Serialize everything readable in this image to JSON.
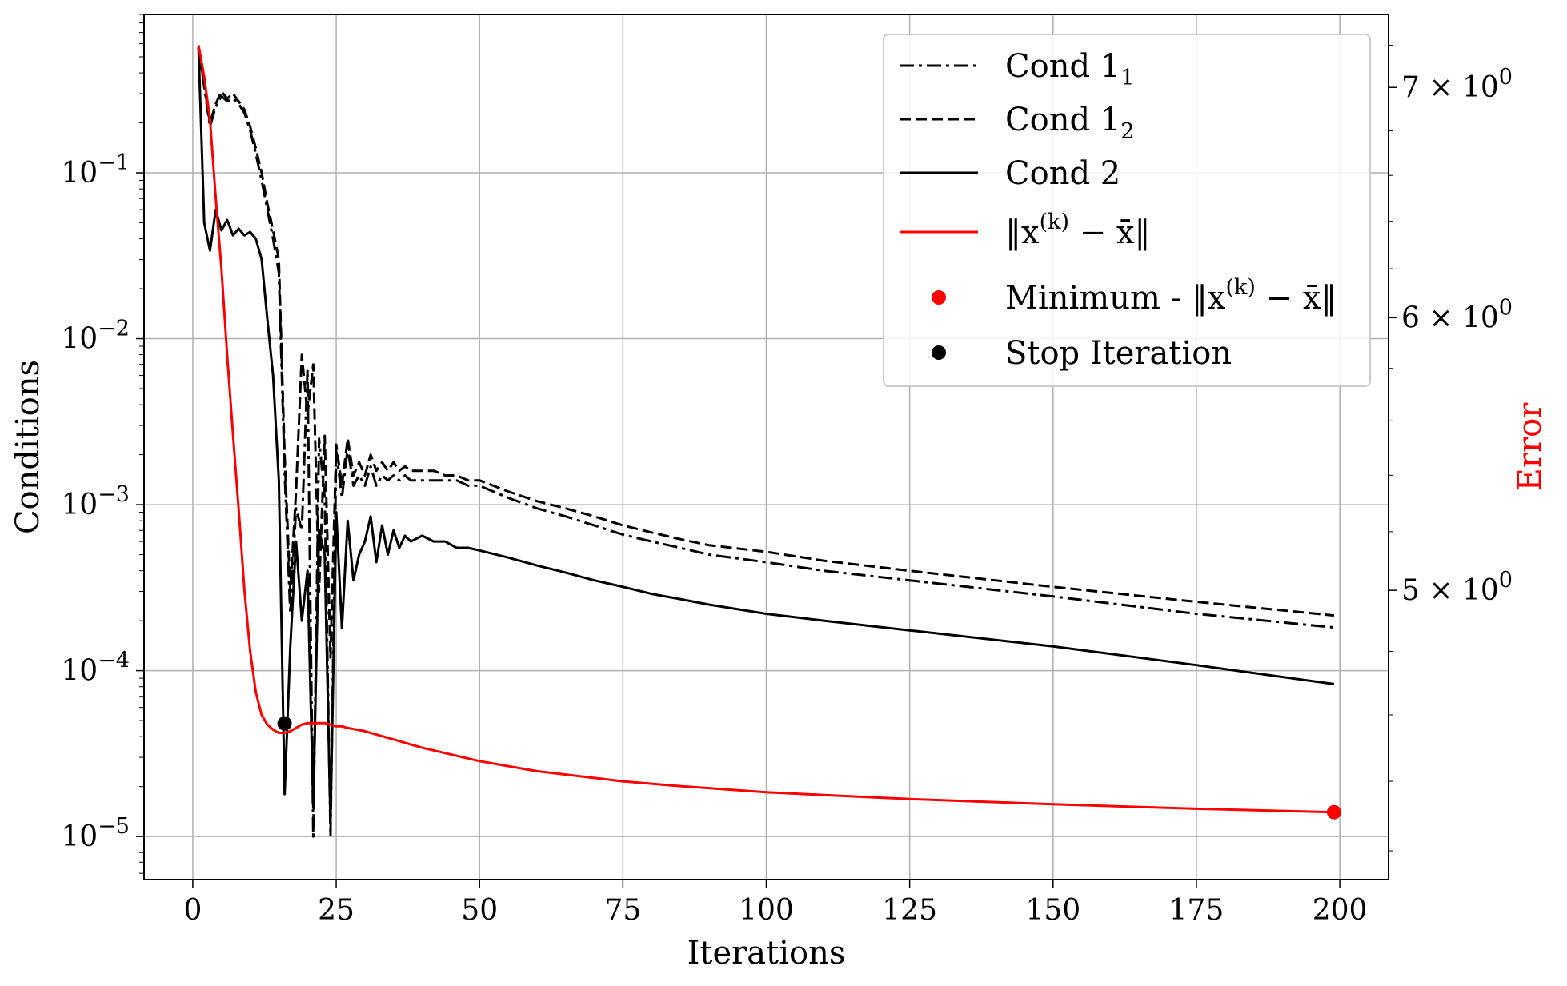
{
  "chart_data": {
    "type": "line",
    "xlabel": "Iterations",
    "ylabel": "Conditions",
    "y2label": "Error",
    "xlim": [
      -8.5,
      208.5
    ],
    "xticks": [
      0,
      25,
      50,
      75,
      100,
      125,
      150,
      175,
      200
    ],
    "xtick_labels": [
      "0",
      "25",
      "50",
      "75",
      "100",
      "125",
      "150",
      "175",
      "200"
    ],
    "yscale": "log",
    "ylim": [
      5.5e-06,
      0.9
    ],
    "yticks": [
      {
        "value": 0.1,
        "base": "10",
        "exp": "−1"
      },
      {
        "value": 0.01,
        "base": "10",
        "exp": "−2"
      },
      {
        "value": 0.001,
        "base": "10",
        "exp": "−3"
      },
      {
        "value": 0.0001,
        "base": "10",
        "exp": "−4"
      },
      {
        "value": 1e-05,
        "base": "10",
        "exp": "−5"
      }
    ],
    "y2scale": "log",
    "y2lim": [
      4.12,
      7.35
    ],
    "y2ticks": [
      {
        "value": 7,
        "mant": "7 × 10",
        "exp": "0"
      },
      {
        "value": 6,
        "mant": "6 × 10",
        "exp": "0"
      },
      {
        "value": 5,
        "mant": "5 × 10",
        "exp": "0"
      }
    ],
    "grid": true,
    "legend_position": "top-right",
    "colors": {
      "conditions": "#000000",
      "error": "#ff0000",
      "grid": "#b0b0b0"
    },
    "series": [
      {
        "name": "Cond 1",
        "sub": "1",
        "style": "dashdot",
        "axis": "left",
        "color": "#000000",
        "points": [
          [
            1,
            0.57
          ],
          [
            3,
            0.19
          ],
          [
            4,
            0.25
          ],
          [
            5,
            0.29
          ],
          [
            6,
            0.27
          ],
          [
            7,
            0.28
          ],
          [
            8,
            0.26
          ],
          [
            9,
            0.23
          ],
          [
            10,
            0.18
          ],
          [
            11,
            0.13
          ],
          [
            12,
            0.09
          ],
          [
            13,
            0.06
          ],
          [
            14,
            0.04
          ],
          [
            15,
            0.025
          ],
          [
            16,
            0.0016
          ],
          [
            17,
            0.00022
          ],
          [
            18,
            0.00095
          ],
          [
            19,
            0.0007
          ],
          [
            20,
            0.0065
          ],
          [
            21,
            1e-05
          ],
          [
            22,
            0.0025
          ],
          [
            23,
            0.0011
          ],
          [
            24,
            1e-05
          ],
          [
            25,
            0.0021
          ],
          [
            26,
            0.0011
          ],
          [
            27,
            0.0022
          ],
          [
            28,
            0.0013
          ],
          [
            29,
            0.0015
          ],
          [
            30,
            0.0013
          ],
          [
            31,
            0.0017
          ],
          [
            32,
            0.0013
          ],
          [
            33,
            0.0015
          ],
          [
            34,
            0.0014
          ],
          [
            35,
            0.0015
          ],
          [
            36,
            0.0014
          ],
          [
            37,
            0.0015
          ],
          [
            38,
            0.0014
          ],
          [
            40,
            0.0014
          ],
          [
            42,
            0.0014
          ],
          [
            44,
            0.0014
          ],
          [
            46,
            0.0014
          ],
          [
            48,
            0.0013
          ],
          [
            50,
            0.0013
          ],
          [
            55,
            0.0011
          ],
          [
            60,
            0.00095
          ],
          [
            65,
            0.00085
          ],
          [
            70,
            0.00075
          ],
          [
            75,
            0.00066
          ],
          [
            80,
            0.0006
          ],
          [
            85,
            0.00055
          ],
          [
            90,
            0.0005
          ],
          [
            100,
            0.00045
          ],
          [
            110,
            0.0004
          ],
          [
            125,
            0.00035
          ],
          [
            150,
            0.00028
          ],
          [
            175,
            0.00022
          ],
          [
            199,
            0.000182
          ]
        ]
      },
      {
        "name": "Cond 1",
        "sub": "2",
        "style": "dashed",
        "axis": "left",
        "color": "#000000",
        "points": [
          [
            1,
            0.57
          ],
          [
            3,
            0.2
          ],
          [
            4,
            0.26
          ],
          [
            5,
            0.31
          ],
          [
            6,
            0.28
          ],
          [
            7,
            0.3
          ],
          [
            8,
            0.27
          ],
          [
            9,
            0.24
          ],
          [
            10,
            0.19
          ],
          [
            11,
            0.14
          ],
          [
            12,
            0.1
          ],
          [
            13,
            0.065
          ],
          [
            14,
            0.045
          ],
          [
            15,
            0.03
          ],
          [
            16,
            0.002
          ],
          [
            17,
            0.0003
          ],
          [
            18,
            0.0012
          ],
          [
            19,
            0.008
          ],
          [
            20,
            0.0035
          ],
          [
            21,
            0.007
          ],
          [
            22,
            0.0003
          ],
          [
            23,
            0.0026
          ],
          [
            24,
            0.00012
          ],
          [
            25,
            0.0023
          ],
          [
            26,
            0.0013
          ],
          [
            27,
            0.0025
          ],
          [
            28,
            0.0015
          ],
          [
            29,
            0.0018
          ],
          [
            30,
            0.0015
          ],
          [
            31,
            0.002
          ],
          [
            32,
            0.0016
          ],
          [
            33,
            0.0018
          ],
          [
            34,
            0.0016
          ],
          [
            35,
            0.0018
          ],
          [
            36,
            0.0016
          ],
          [
            37,
            0.0017
          ],
          [
            38,
            0.0016
          ],
          [
            40,
            0.0016
          ],
          [
            42,
            0.0016
          ],
          [
            44,
            0.0015
          ],
          [
            46,
            0.0015
          ],
          [
            48,
            0.0014
          ],
          [
            50,
            0.0014
          ],
          [
            55,
            0.0012
          ],
          [
            60,
            0.00105
          ],
          [
            65,
            0.00095
          ],
          [
            70,
            0.00085
          ],
          [
            75,
            0.00075
          ],
          [
            80,
            0.00068
          ],
          [
            85,
            0.00062
          ],
          [
            90,
            0.00057
          ],
          [
            100,
            0.00052
          ],
          [
            110,
            0.00046
          ],
          [
            125,
            0.0004
          ],
          [
            150,
            0.00032
          ],
          [
            175,
            0.00026
          ],
          [
            199,
            0.000215
          ]
        ]
      },
      {
        "name": "Cond 2",
        "sub": "",
        "style": "solid",
        "axis": "left",
        "color": "#000000",
        "points": [
          [
            1,
            0.57
          ],
          [
            2,
            0.05
          ],
          [
            3,
            0.034
          ],
          [
            4,
            0.06
          ],
          [
            5,
            0.045
          ],
          [
            6,
            0.052
          ],
          [
            7,
            0.042
          ],
          [
            8,
            0.046
          ],
          [
            9,
            0.042
          ],
          [
            10,
            0.044
          ],
          [
            11,
            0.04
          ],
          [
            12,
            0.03
          ],
          [
            13,
            0.013
          ],
          [
            14,
            0.006
          ],
          [
            15,
            0.0014
          ],
          [
            16,
            1.8e-05
          ],
          [
            17,
            0.00014
          ],
          [
            18,
            0.0006
          ],
          [
            19,
            0.0002
          ],
          [
            20,
            0.0004
          ],
          [
            21,
            1.5e-05
          ],
          [
            22,
            0.0007
          ],
          [
            23,
            0.0005
          ],
          [
            24,
            1.2e-05
          ],
          [
            25,
            0.0009
          ],
          [
            26,
            0.00018
          ],
          [
            27,
            0.0008
          ],
          [
            28,
            0.00035
          ],
          [
            29,
            0.0005
          ],
          [
            30,
            0.0006
          ],
          [
            31,
            0.00085
          ],
          [
            32,
            0.00045
          ],
          [
            33,
            0.00075
          ],
          [
            34,
            0.0005
          ],
          [
            35,
            0.0007
          ],
          [
            36,
            0.00055
          ],
          [
            37,
            0.00065
          ],
          [
            38,
            0.0006
          ],
          [
            40,
            0.00065
          ],
          [
            42,
            0.0006
          ],
          [
            44,
            0.0006
          ],
          [
            46,
            0.00055
          ],
          [
            48,
            0.00055
          ],
          [
            50,
            0.00053
          ],
          [
            55,
            0.00048
          ],
          [
            60,
            0.00043
          ],
          [
            65,
            0.00039
          ],
          [
            70,
            0.00035
          ],
          [
            75,
            0.00032
          ],
          [
            80,
            0.00029
          ],
          [
            85,
            0.00027
          ],
          [
            90,
            0.00025
          ],
          [
            100,
            0.00022
          ],
          [
            110,
            0.0002
          ],
          [
            125,
            0.000175
          ],
          [
            150,
            0.00014
          ],
          [
            175,
            0.000108
          ],
          [
            199,
            8.3e-05
          ]
        ]
      },
      {
        "name": "‖x(k) − x̄‖",
        "sub": "",
        "style": "solid",
        "axis": "right",
        "color": "#ff0000",
        "points": [
          [
            1,
            7.2
          ],
          [
            2,
            7.05
          ],
          [
            3,
            6.85
          ],
          [
            4,
            6.5
          ],
          [
            5,
            6.2
          ],
          [
            6,
            5.85
          ],
          [
            7,
            5.55
          ],
          [
            8,
            5.28
          ],
          [
            9,
            5.0
          ],
          [
            10,
            4.8
          ],
          [
            11,
            4.67
          ],
          [
            12,
            4.6
          ],
          [
            13,
            4.57
          ],
          [
            14,
            4.555
          ],
          [
            15,
            4.545
          ],
          [
            16,
            4.545
          ],
          [
            17,
            4.55
          ],
          [
            18,
            4.56
          ],
          [
            19,
            4.57
          ],
          [
            20,
            4.575
          ],
          [
            21,
            4.575
          ],
          [
            22,
            4.575
          ],
          [
            23,
            4.575
          ],
          [
            24,
            4.57
          ],
          [
            25,
            4.565
          ],
          [
            26,
            4.565
          ],
          [
            27,
            4.56
          ],
          [
            30,
            4.55
          ],
          [
            35,
            4.525
          ],
          [
            40,
            4.5
          ],
          [
            45,
            4.48
          ],
          [
            50,
            4.46
          ],
          [
            55,
            4.445
          ],
          [
            60,
            4.43
          ],
          [
            65,
            4.42
          ],
          [
            70,
            4.41
          ],
          [
            75,
            4.4
          ],
          [
            80,
            4.393
          ],
          [
            85,
            4.386
          ],
          [
            90,
            4.38
          ],
          [
            100,
            4.368
          ],
          [
            110,
            4.36
          ],
          [
            125,
            4.348
          ],
          [
            150,
            4.333
          ],
          [
            175,
            4.32
          ],
          [
            199,
            4.31
          ]
        ]
      }
    ],
    "markers": [
      {
        "name": "Minimum - ‖x(k) − x̄‖",
        "x": 199,
        "value": 4.31,
        "axis": "right",
        "color": "#ff0000"
      },
      {
        "name": "Stop Iteration",
        "x": 16,
        "value": 4.8e-05,
        "axis": "left",
        "color": "#000000"
      }
    ],
    "legend": [
      {
        "pre": "Cond 1",
        "sub": "1",
        "post": "",
        "kind": "line",
        "dash": "dashdot",
        "color": "#000000"
      },
      {
        "pre": "Cond 1",
        "sub": "2",
        "post": "",
        "kind": "line",
        "dash": "dashed",
        "color": "#000000"
      },
      {
        "pre": "Cond 2",
        "sub": "",
        "post": "",
        "kind": "line",
        "dash": "solid",
        "color": "#000000"
      },
      {
        "pre": "‖x",
        "sup": "(k)",
        "post": " − x̄‖",
        "kind": "line",
        "dash": "solid",
        "color": "#ff0000"
      },
      {
        "pre": "Minimum - ‖x",
        "sup": "(k)",
        "post": " − x̄‖",
        "kind": "dot",
        "color": "#ff0000"
      },
      {
        "pre": "Stop Iteration",
        "sub": "",
        "post": "",
        "kind": "dot",
        "color": "#000000"
      }
    ]
  }
}
